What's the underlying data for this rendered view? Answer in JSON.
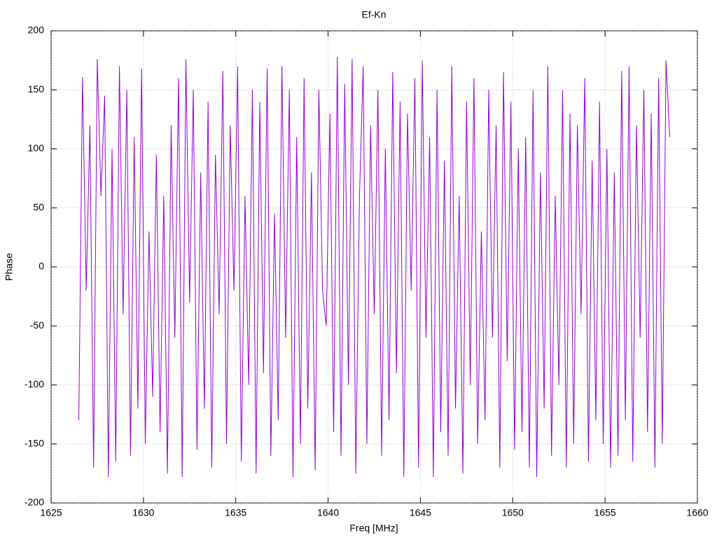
{
  "chart_data": {
    "type": "line",
    "title": "Ef-Kn",
    "xlabel": "Freq [MHz]",
    "ylabel": "Phase",
    "x": [
      1626.5,
      1626.7,
      1626.9,
      1627.1,
      1627.3,
      1627.5,
      1627.7,
      1627.9,
      1628.1,
      1628.3,
      1628.5,
      1628.7,
      1628.9,
      1629.1,
      1629.3,
      1629.5,
      1629.7,
      1629.9,
      1630.1,
      1630.3,
      1630.5,
      1630.7,
      1630.9,
      1631.1,
      1631.3,
      1631.5,
      1631.7,
      1631.9,
      1632.1,
      1632.3,
      1632.5,
      1632.7,
      1632.9,
      1633.1,
      1633.3,
      1633.5,
      1633.7,
      1633.9,
      1634.1,
      1634.3,
      1634.5,
      1634.7,
      1634.9,
      1635.1,
      1635.3,
      1635.5,
      1635.7,
      1635.9,
      1636.1,
      1636.3,
      1636.5,
      1636.7,
      1636.9,
      1637.1,
      1637.3,
      1637.5,
      1637.7,
      1637.9,
      1638.1,
      1638.3,
      1638.5,
      1638.7,
      1638.9,
      1639.1,
      1639.3,
      1639.5,
      1639.7,
      1639.9,
      1640.1,
      1640.3,
      1640.5,
      1640.7,
      1640.9,
      1641.1,
      1641.3,
      1641.5,
      1641.7,
      1641.9,
      1642.1,
      1642.3,
      1642.5,
      1642.7,
      1642.9,
      1643.1,
      1643.3,
      1643.5,
      1643.7,
      1643.9,
      1644.1,
      1644.3,
      1644.5,
      1644.7,
      1644.9,
      1645.1,
      1645.3,
      1645.5,
      1645.7,
      1645.9,
      1646.1,
      1646.3,
      1646.5,
      1646.7,
      1646.9,
      1647.1,
      1647.3,
      1647.5,
      1647.7,
      1647.9,
      1648.1,
      1648.3,
      1648.5,
      1648.7,
      1648.9,
      1649.1,
      1649.3,
      1649.5,
      1649.7,
      1649.9,
      1650.1,
      1650.3,
      1650.5,
      1650.7,
      1650.9,
      1651.1,
      1651.3,
      1651.5,
      1651.7,
      1651.9,
      1652.1,
      1652.3,
      1652.5,
      1652.7,
      1652.9,
      1653.1,
      1653.3,
      1653.5,
      1653.7,
      1653.9,
      1654.1,
      1654.3,
      1654.5,
      1654.7,
      1654.9,
      1655.1,
      1655.3,
      1655.5,
      1655.7,
      1655.9,
      1656.1,
      1656.3,
      1656.5,
      1656.7,
      1656.9,
      1657.1,
      1657.3,
      1657.5,
      1657.7,
      1657.9,
      1658.1,
      1658.3,
      1658.5
    ],
    "values": [
      -130,
      161,
      -20,
      120,
      -170,
      176,
      60,
      145,
      -178,
      100,
      -165,
      170,
      -40,
      150,
      -160,
      110,
      -120,
      168,
      -150,
      30,
      -110,
      95,
      -140,
      60,
      -175,
      120,
      -60,
      160,
      -178,
      176,
      -30,
      150,
      -155,
      80,
      -120,
      140,
      -170,
      95,
      -40,
      166,
      -150,
      120,
      -20,
      170,
      -165,
      60,
      -100,
      150,
      -175,
      140,
      -90,
      168,
      -160,
      45,
      -130,
      170,
      -60,
      150,
      -178,
      110,
      -150,
      160,
      -120,
      80,
      -172,
      150,
      -20,
      -50,
      130,
      -140,
      178,
      -160,
      155,
      -100,
      176,
      -175,
      60,
      170,
      -150,
      120,
      -40,
      150,
      -160,
      100,
      -130,
      165,
      -90,
      140,
      -178,
      130,
      -20,
      160,
      -170,
      175,
      -60,
      110,
      -178,
      150,
      -140,
      90,
      -160,
      170,
      -120,
      60,
      -175,
      140,
      -100,
      160,
      -150,
      30,
      -130,
      150,
      -60,
      120,
      -170,
      165,
      -80,
      140,
      -155,
      100,
      -140,
      110,
      -170,
      150,
      -178,
      80,
      -120,
      170,
      -160,
      60,
      -100,
      150,
      -170,
      130,
      -150,
      120,
      -40,
      160,
      -165,
      90,
      -130,
      140,
      -150,
      100,
      -170,
      80,
      -160,
      166,
      -130,
      170,
      -165,
      120,
      -60,
      150,
      -140,
      130,
      -170,
      160,
      -150,
      175,
      110
    ],
    "color": "#9400d3",
    "xlim": [
      1625,
      1660
    ],
    "xticks": [
      1625,
      1630,
      1635,
      1640,
      1645,
      1650,
      1655,
      1660
    ],
    "ylim": [
      -200,
      200
    ],
    "yticks": [
      -200,
      -150,
      -100,
      -50,
      0,
      50,
      100,
      150,
      200
    ],
    "grid": true
  }
}
